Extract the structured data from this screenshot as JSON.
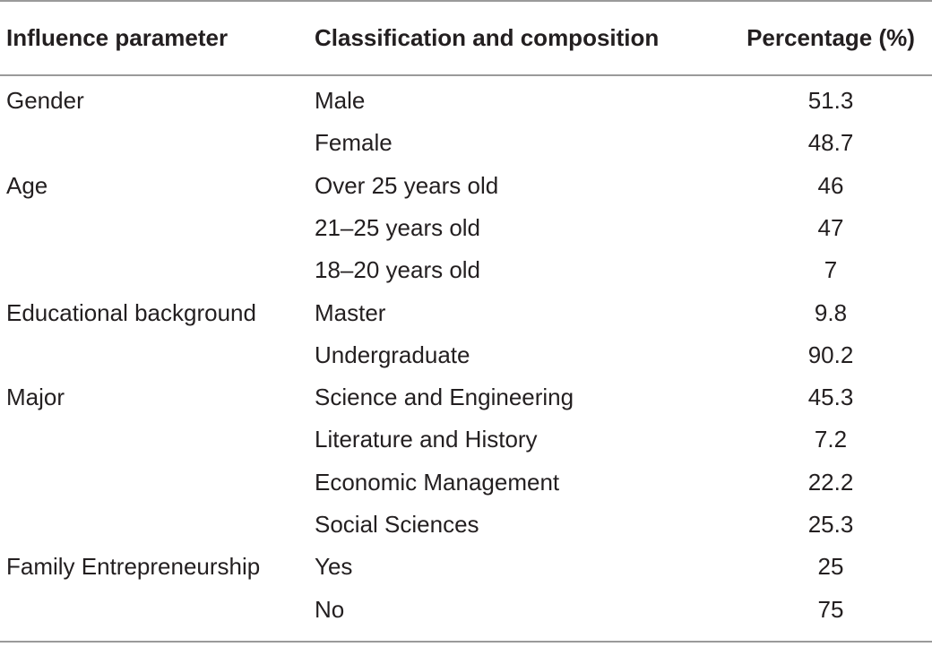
{
  "table": {
    "header": [
      "Influence parameter",
      "Classification and composition",
      "Percentage (%)"
    ],
    "groups": [
      {
        "parameter": "Gender",
        "items": [
          {
            "label": "Male",
            "percentage": 51.3
          },
          {
            "label": "Female",
            "percentage": 48.7
          }
        ]
      },
      {
        "parameter": "Age",
        "items": [
          {
            "label": "Over 25 years old",
            "percentage": 46
          },
          {
            "label": "21–25 years old",
            "percentage": 47
          },
          {
            "label": "18–20 years old",
            "percentage": 7
          }
        ]
      },
      {
        "parameter": "Educational background",
        "items": [
          {
            "label": "Master",
            "percentage": 9.8
          },
          {
            "label": "Undergraduate",
            "percentage": 90.2
          }
        ]
      },
      {
        "parameter": "Major",
        "items": [
          {
            "label": "Science and Engineering",
            "percentage": 45.3
          },
          {
            "label": "Literature and History",
            "percentage": 7.2
          },
          {
            "label": "Economic Management",
            "percentage": 22.2
          },
          {
            "label": "Social Sciences",
            "percentage": 25.3
          }
        ]
      },
      {
        "parameter": "Family Entrepreneurship",
        "items": [
          {
            "label": "Yes",
            "percentage": 25
          },
          {
            "label": "No",
            "percentage": 75
          }
        ]
      }
    ]
  }
}
